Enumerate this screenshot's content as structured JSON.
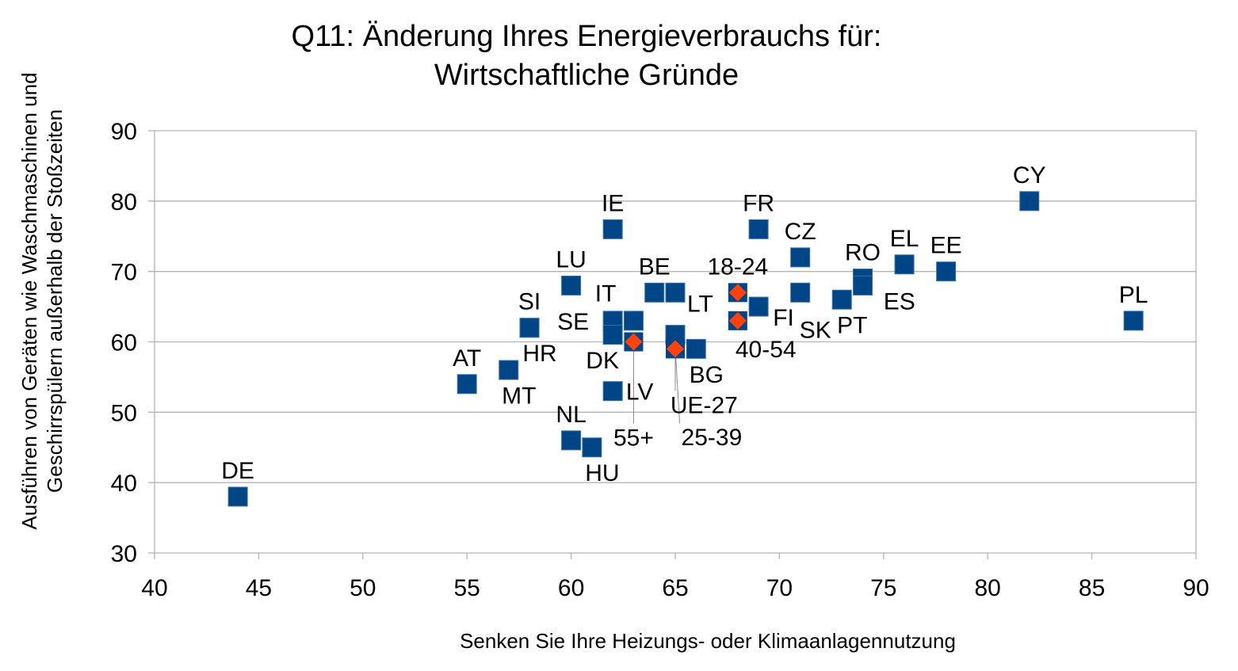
{
  "chart_data": {
    "type": "scatter",
    "title": [
      "Q11: Änderung Ihres Energieverbrauchs für:",
      "Wirtschaftliche Gründe"
    ],
    "xlabel": "Senken Sie Ihre Heizungs- oder Klimaanlagennutzung",
    "ylabel": [
      "Ausführen von Geräten wie Waschmaschinen und",
      "Geschirrspülern außerhalb der Stoßzeiten"
    ],
    "xlim": [
      40,
      90
    ],
    "ylim": [
      30,
      90
    ],
    "xticks": [
      40,
      45,
      50,
      55,
      60,
      65,
      70,
      75,
      80,
      85,
      90
    ],
    "yticks": [
      30,
      40,
      50,
      60,
      70,
      80,
      90
    ],
    "grid": true,
    "colors": {
      "countries": "#004586",
      "age_groups": "#ff420e"
    },
    "series": [
      {
        "marker": "square",
        "points": [
          {
            "label": "DE",
            "x": 44,
            "y": 38
          },
          {
            "label": "AT",
            "x": 55,
            "y": 54
          },
          {
            "label": "MT",
            "x": 57,
            "y": 56
          },
          {
            "label": "SI",
            "x": 58,
            "y": 62
          },
          {
            "label": "HR",
            "x": 58,
            "y": 62
          },
          {
            "label": "LU",
            "x": 60,
            "y": 68
          },
          {
            "label": "IE",
            "x": 62,
            "y": 76
          },
          {
            "label": "NL",
            "x": 60,
            "y": 46
          },
          {
            "label": "HU",
            "x": 61,
            "y": 45
          },
          {
            "label": "LV",
            "x": 62,
            "y": 53
          },
          {
            "label": "SE",
            "x": 62,
            "y": 63
          },
          {
            "label": "DK",
            "x": 62,
            "y": 61
          },
          {
            "label": "IT",
            "x": 63,
            "y": 63
          },
          {
            "label": "BE",
            "x": 64,
            "y": 67
          },
          {
            "label": "LT",
            "x": 65,
            "y": 67
          },
          {
            "label": "UE-27",
            "x": 65,
            "y": 61
          },
          {
            "label": "BG",
            "x": 66,
            "y": 59
          },
          {
            "label": "FR",
            "x": 69,
            "y": 76
          },
          {
            "label": "FI",
            "x": 69,
            "y": 65
          },
          {
            "label": "CZ",
            "x": 71,
            "y": 72
          },
          {
            "label": "SK",
            "x": 71,
            "y": 67
          },
          {
            "label": "PT",
            "x": 73,
            "y": 66
          },
          {
            "label": "RO",
            "x": 74,
            "y": 69
          },
          {
            "label": "ES",
            "x": 74,
            "y": 68
          },
          {
            "label": "EL",
            "x": 76,
            "y": 71
          },
          {
            "label": "EE",
            "x": 78,
            "y": 70
          },
          {
            "label": "CY",
            "x": 82,
            "y": 80
          },
          {
            "label": "PL",
            "x": 87,
            "y": 63
          }
        ]
      },
      {
        "marker": "diamond",
        "points": [
          {
            "label": "18-24",
            "x": 68,
            "y": 67
          },
          {
            "label": "40-54",
            "x": 68,
            "y": 63
          },
          {
            "label": "55+",
            "x": 63,
            "y": 60
          },
          {
            "label": "25-39",
            "x": 65,
            "y": 59
          }
        ]
      }
    ]
  }
}
